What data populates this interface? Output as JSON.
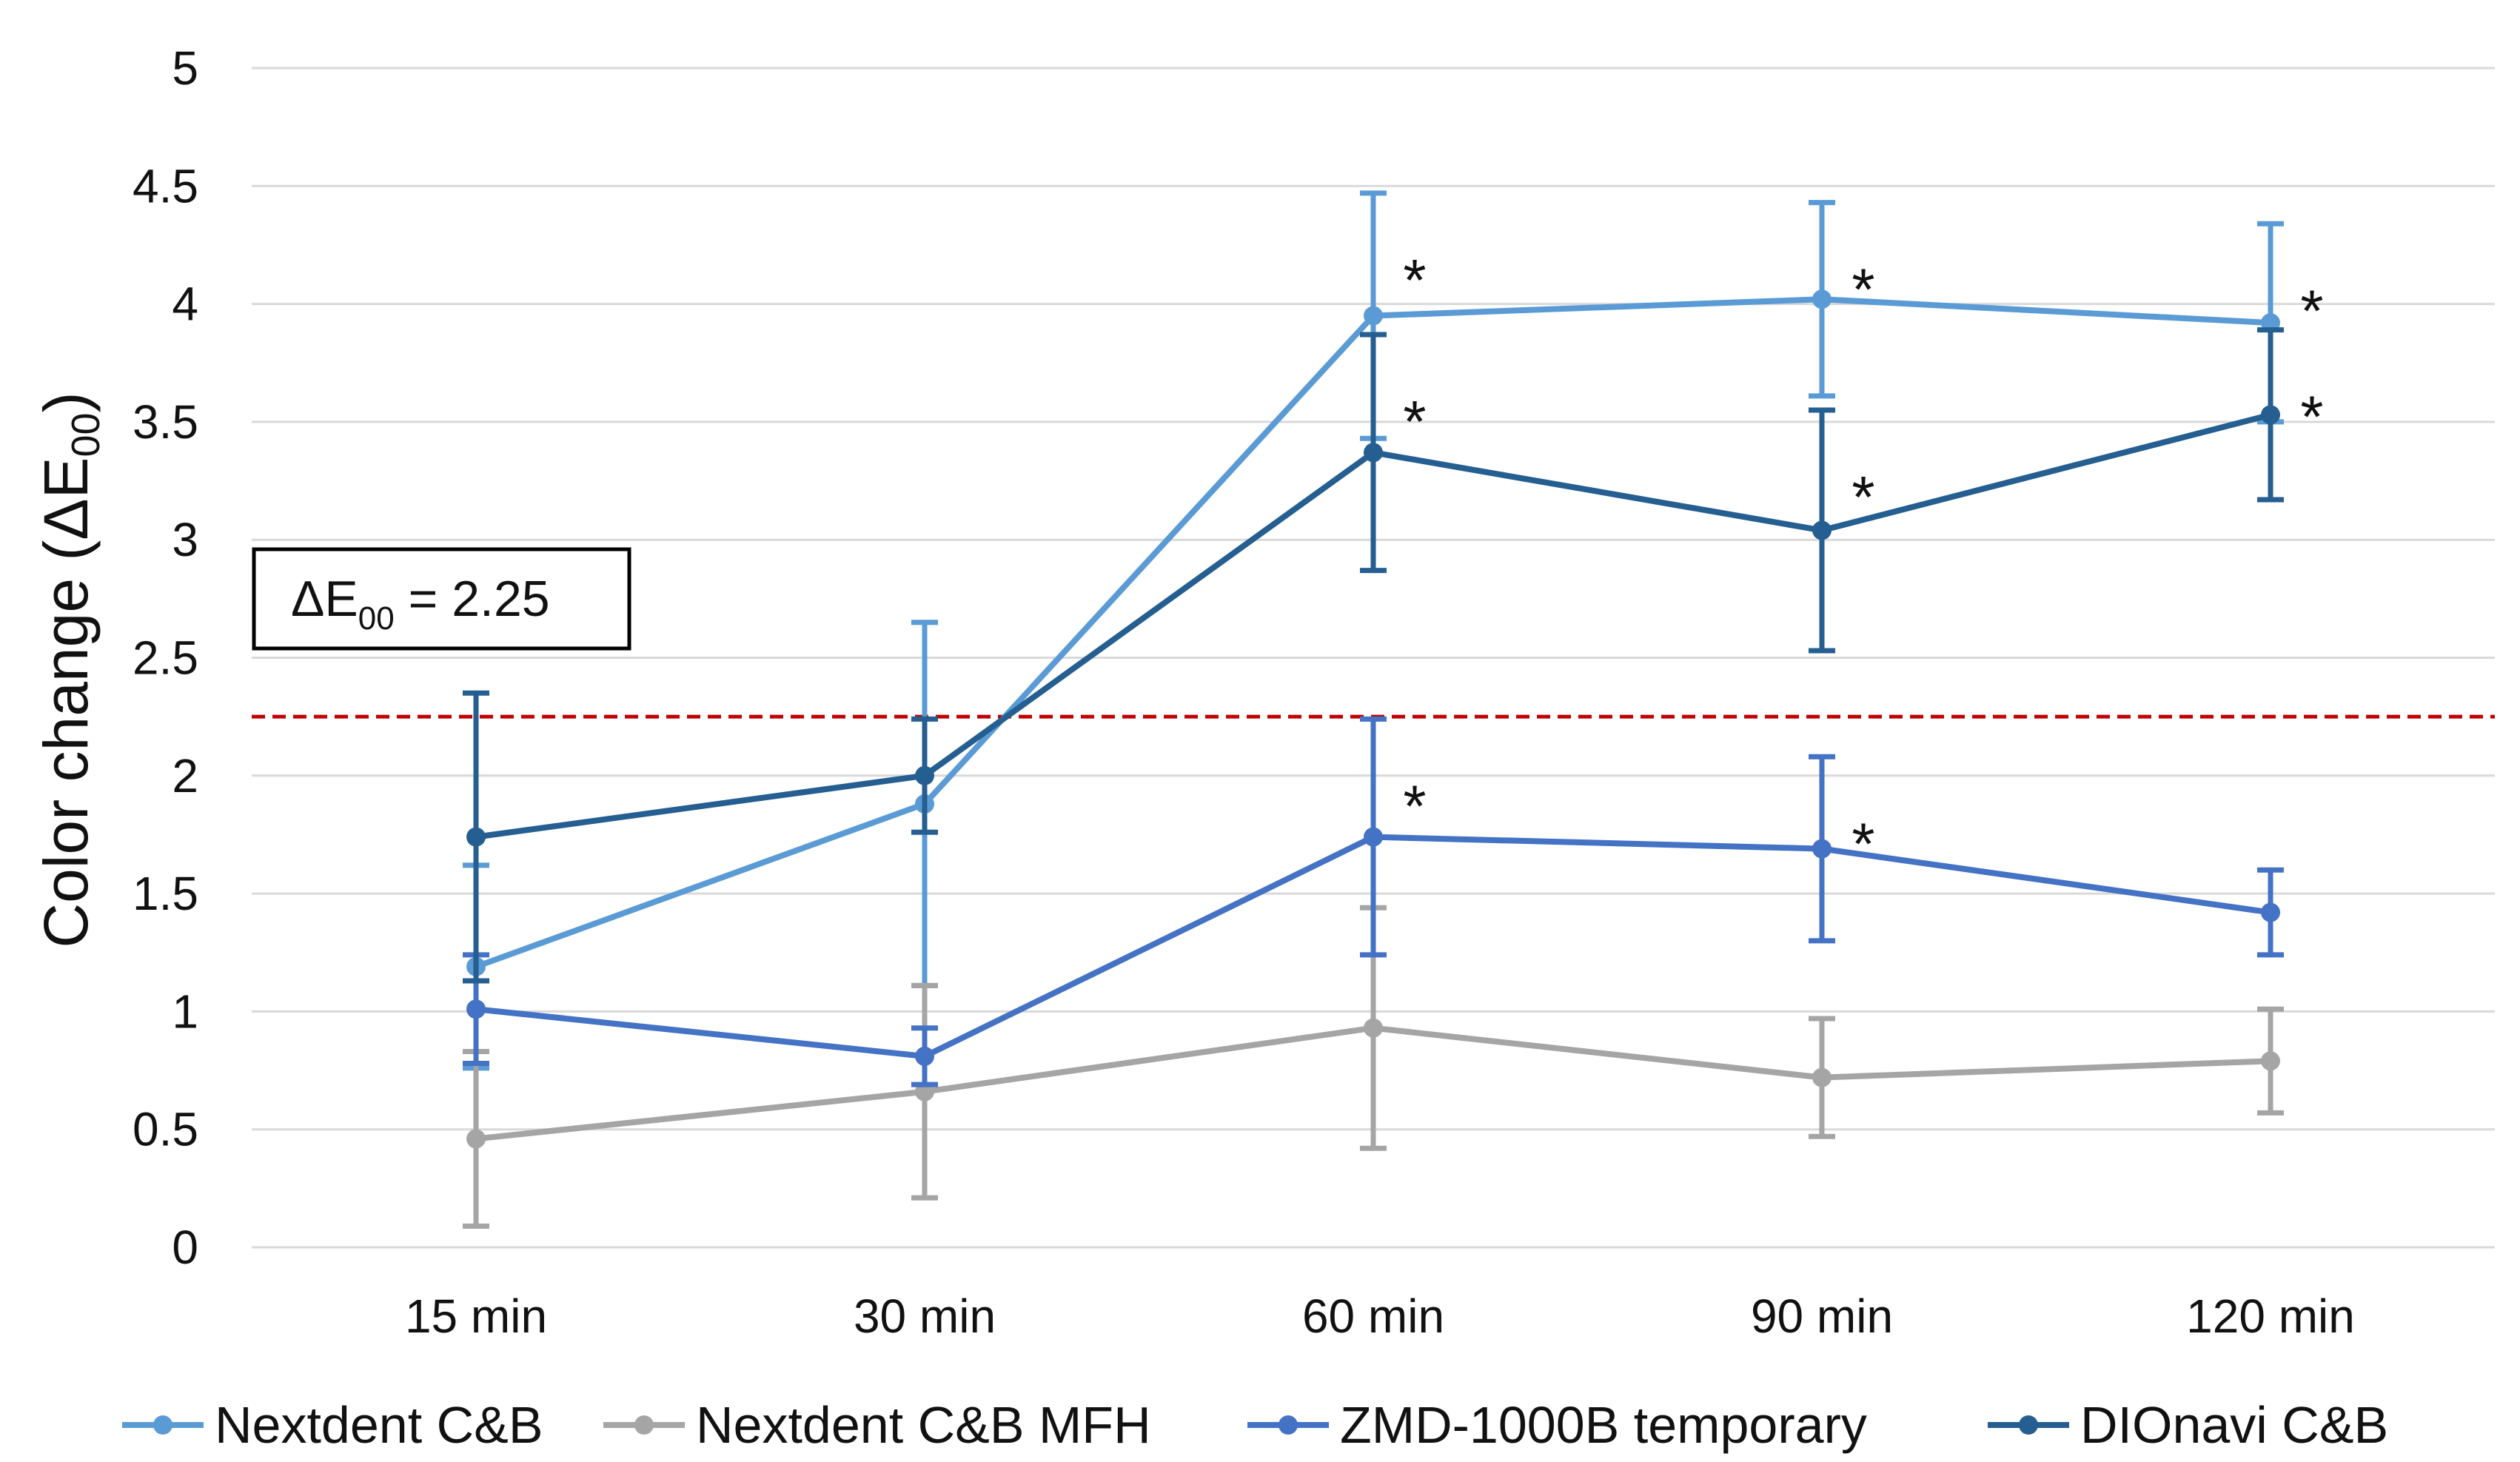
{
  "chart_data": {
    "type": "line",
    "title": "",
    "xlabel": "",
    "ylabel": "Color change (ΔE",
    "ylabel_subscript": "00",
    "ylabel_close": ")",
    "ylim": [
      0,
      5
    ],
    "yticks": [
      "0",
      "0.5",
      "1",
      "1.5",
      "2",
      "2.5",
      "3",
      "3.5",
      "4",
      "4.5",
      "5"
    ],
    "grid": true,
    "categories": [
      "15 min",
      "30 min",
      "60 min",
      "90 min",
      "120 min"
    ],
    "series": [
      {
        "name": "Nextdent C&B",
        "color": "#5b9bd5",
        "values": [
          1.19,
          1.88,
          3.95,
          4.02,
          3.92
        ],
        "errors": [
          0.43,
          0.77,
          0.52,
          0.41,
          0.42
        ],
        "significant": [
          false,
          false,
          true,
          true,
          true
        ]
      },
      {
        "name": "Nextdent C&B MFH",
        "color": "#a5a5a5",
        "values": [
          0.46,
          0.66,
          0.93,
          0.72,
          0.79
        ],
        "errors": [
          0.37,
          0.45,
          0.51,
          0.25,
          0.22
        ],
        "significant": [
          false,
          false,
          false,
          false,
          false
        ]
      },
      {
        "name": "ZMD-1000B temporary",
        "color": "#4472c4",
        "values": [
          1.01,
          0.81,
          1.74,
          1.69,
          1.42
        ],
        "errors": [
          0.23,
          0.12,
          0.5,
          0.39,
          0.18
        ],
        "significant": [
          false,
          false,
          true,
          true,
          false
        ]
      },
      {
        "name": "DIOnavi C&B",
        "color": "#255e91",
        "values": [
          1.74,
          2.0,
          3.37,
          3.04,
          3.53
        ],
        "errors": [
          0.61,
          0.24,
          0.5,
          0.51,
          0.36
        ],
        "significant": [
          false,
          false,
          true,
          true,
          true
        ]
      }
    ],
    "annotations": {
      "significance_marker": "*",
      "threshold": {
        "value": 2.25,
        "color": "#c00000",
        "label_prefix": "ΔE",
        "label_subscript": "00",
        "label_suffix": " = 2.25"
      }
    },
    "legend_position": "bottom"
  }
}
